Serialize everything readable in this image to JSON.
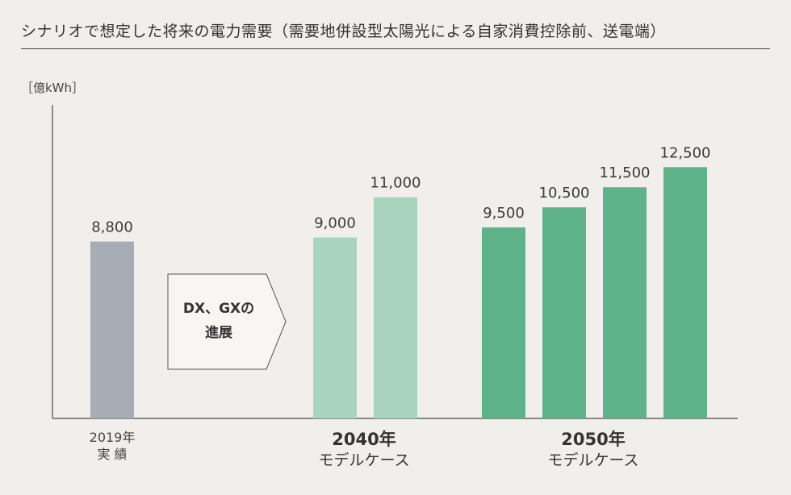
{
  "title": "シナリオで想定した将来の電力需要（需要地併設型太陽光による自家消費控除前、送電端）",
  "unit_label": "［億kWh］",
  "arrow": {
    "line1": "DX、GXの",
    "line2": "進展"
  },
  "groups": [
    {
      "line1": "2019年",
      "line2": "実 績"
    },
    {
      "line1": "2040年",
      "line2": "モデルケース"
    },
    {
      "line1": "2050年",
      "line2": "モデルケース"
    }
  ],
  "colors": {
    "background": "#f0efeb",
    "actual": "#a6adb4",
    "model_2040": "#a8d4bd",
    "model_2050": "#5fb38b"
  },
  "chart_data": {
    "type": "bar",
    "title": "シナリオで想定した将来の電力需要（需要地併設型太陽光による自家消費控除前、送電端）",
    "ylabel": "［億kWh］",
    "ylim": [
      0,
      15600
    ],
    "grid": false,
    "bars": [
      {
        "group": "2019年 実績",
        "value": 8800,
        "label": "8,800",
        "color": "#a6adb4"
      },
      {
        "group": "2040年 モデルケース",
        "value": 9000,
        "label": "9,000",
        "color": "#a8d4bd"
      },
      {
        "group": "2040年 モデルケース",
        "value": 11000,
        "label": "11,000",
        "color": "#a8d4bd"
      },
      {
        "group": "2050年 モデルケース",
        "value": 9500,
        "label": "9,500",
        "color": "#5fb38b"
      },
      {
        "group": "2050年 モデルケース",
        "value": 10500,
        "label": "10,500",
        "color": "#5fb38b"
      },
      {
        "group": "2050年 モデルケース",
        "value": 11500,
        "label": "11,500",
        "color": "#5fb38b"
      },
      {
        "group": "2050年 モデルケース",
        "value": 12500,
        "label": "12,500",
        "color": "#5fb38b"
      }
    ]
  }
}
